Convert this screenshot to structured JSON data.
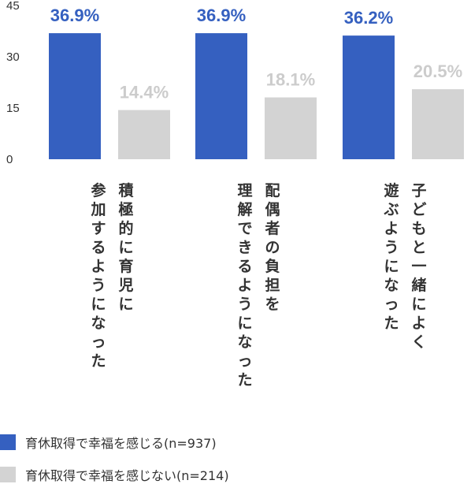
{
  "chart_data": {
    "type": "bar",
    "ylim": [
      0,
      45
    ],
    "yticks": [
      0,
      15,
      30,
      45
    ],
    "grid": false,
    "legend_position": "bottom-left",
    "categories": [
      [
        "積極的に育児に",
        "参加するようになった"
      ],
      [
        "配偶者の負担を",
        "理解できるようになった"
      ],
      [
        "子どもと一緒によく",
        "遊ぶようになった"
      ]
    ],
    "series": [
      {
        "name": "育休取得で幸福を感じる(n=937)",
        "values": [
          36.9,
          36.9,
          36.2
        ],
        "labels": [
          "36.9%",
          "36.9%",
          "36.2%"
        ],
        "color": "#3560c0",
        "label_color": "#3560c0"
      },
      {
        "name": "育休取得で幸福を感じない(n=214)",
        "values": [
          14.4,
          18.1,
          20.5
        ],
        "labels": [
          "14.4%",
          "18.1%",
          "20.5%"
        ],
        "color": "#d3d3d3",
        "label_color": "#cccccc"
      }
    ]
  }
}
